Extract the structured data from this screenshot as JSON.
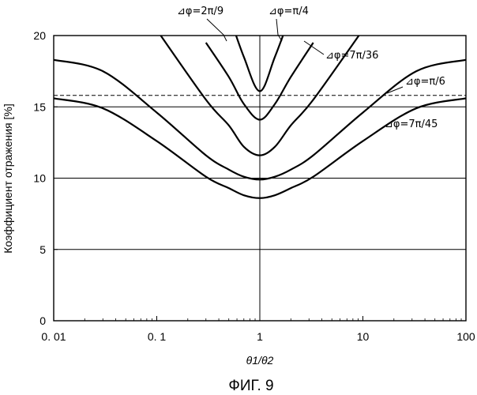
{
  "chart_data": {
    "type": "line",
    "title": "",
    "caption": "ФИГ. 9",
    "xlabel": "θ1/θ2",
    "ylabel": "Коэффициент отражения [%]",
    "xscale": "log",
    "xlim": [
      0.01,
      100
    ],
    "ylim": [
      0,
      20
    ],
    "xticks": [
      0.01,
      0.1,
      1,
      10,
      100
    ],
    "xtick_labels": [
      "0. 01",
      "0. 1",
      "1",
      "10",
      "100"
    ],
    "yticks": [
      0,
      5,
      10,
      15,
      20
    ],
    "ytick_labels": [
      "0",
      "5",
      "10",
      "15",
      "20"
    ],
    "grid": "horizontal at 5, 10, 15; vertical at x=1",
    "reference_line": {
      "y": 15.8,
      "style": "dashed"
    },
    "x": [
      0.01,
      0.03,
      0.1,
      0.3,
      0.5,
      0.7,
      1,
      1.4,
      2,
      3.3,
      10,
      33,
      100
    ],
    "series": [
      {
        "label": "⊿φ=7π/45",
        "values": [
          15.6,
          14.9,
          12.6,
          10.1,
          9.3,
          8.8,
          8.6,
          8.8,
          9.3,
          10.1,
          12.6,
          14.9,
          15.6
        ]
      },
      {
        "label": "⊿φ=π/6",
        "values": [
          18.3,
          17.5,
          14.6,
          11.6,
          10.6,
          10.1,
          9.9,
          10.1,
          10.6,
          11.6,
          14.6,
          17.5,
          18.3
        ]
      },
      {
        "label": "⊿φ=7π/36",
        "values": [
          null,
          null,
          20.4,
          15.5,
          13.7,
          12.2,
          11.6,
          12.2,
          13.7,
          15.5,
          20.4,
          null,
          null
        ]
      },
      {
        "label": "⊿φ=2π/9",
        "values": [
          null,
          null,
          null,
          19.5,
          17.1,
          15.2,
          14.1,
          15.2,
          17.1,
          19.5,
          null,
          null,
          null
        ]
      },
      {
        "label": "⊿φ=π/4",
        "values": [
          null,
          null,
          null,
          null,
          21.5,
          18.5,
          16.1,
          18.5,
          21.5,
          null,
          null,
          null,
          null
        ]
      }
    ]
  }
}
